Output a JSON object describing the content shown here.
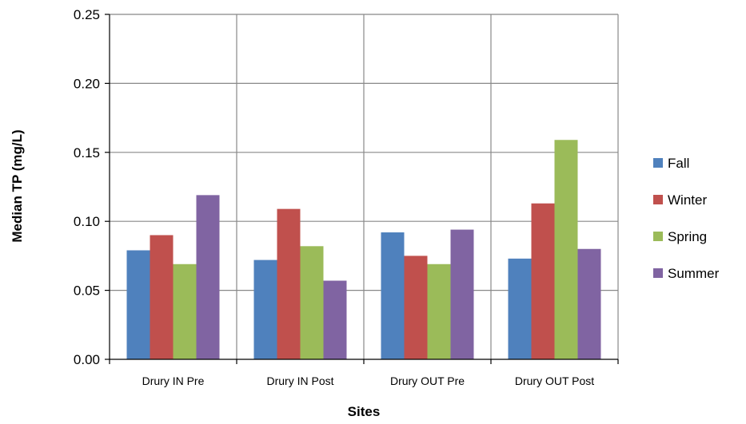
{
  "chart_data": {
    "type": "bar",
    "title": "",
    "xlabel": "Sites",
    "ylabel": "Median TP (mg/L)",
    "ylim": [
      0,
      0.25
    ],
    "yticks": [
      "0.00",
      "0.05",
      "0.10",
      "0.15",
      "0.20",
      "0.25"
    ],
    "grid": true,
    "legend_position": "right",
    "categories": [
      "Drury IN Pre",
      "Drury IN Post",
      "Drury OUT Pre",
      "Drury OUT Post"
    ],
    "series": [
      {
        "name": "Fall",
        "color": "#4F81BD",
        "values": [
          0.079,
          0.072,
          0.092,
          0.073
        ]
      },
      {
        "name": "Winter",
        "color": "#C0504D",
        "values": [
          0.09,
          0.109,
          0.075,
          0.113
        ]
      },
      {
        "name": "Spring",
        "color": "#9BBB59",
        "values": [
          0.069,
          0.082,
          0.069,
          0.159
        ]
      },
      {
        "name": "Summer",
        "color": "#8064A2",
        "values": [
          0.119,
          0.057,
          0.094,
          0.08
        ]
      }
    ]
  }
}
